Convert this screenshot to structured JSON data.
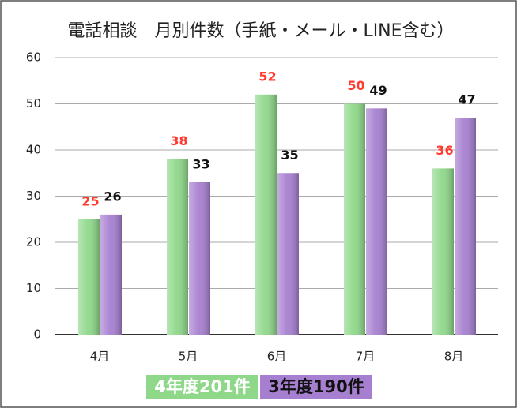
{
  "chart_data": {
    "type": "bar",
    "title": "電話相談　月別件数（手紙・メール・LINE含む）",
    "categories": [
      "4月",
      "5月",
      "6月",
      "7月",
      "8月"
    ],
    "series": [
      {
        "name": "4年度201件",
        "color": "#8fd88a",
        "label_color": "#ff3b30",
        "values": [
          25,
          38,
          52,
          50,
          36
        ]
      },
      {
        "name": "3年度190件",
        "color": "#a77fd0",
        "label_color": "#111111",
        "values": [
          26,
          33,
          35,
          49,
          47
        ]
      }
    ],
    "ylim": [
      0,
      60
    ],
    "yticks": [
      0,
      10,
      20,
      30,
      40,
      50,
      60
    ],
    "grid": true,
    "legend": "bottom"
  }
}
